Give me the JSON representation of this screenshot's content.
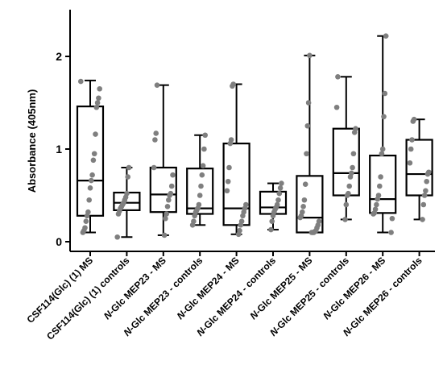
{
  "chart_data": {
    "type": "box",
    "title": "",
    "ylabel": "Absorbance (405nm)",
    "xlabel": "",
    "ylim": [
      -0.1,
      2.5
    ],
    "yticks": [
      "0",
      "1",
      "2"
    ],
    "grid": false,
    "colors": {
      "box": "#000000",
      "point": "#7f7f7f"
    },
    "categories": [
      "CSF114(Glc) (1) MS",
      "CSF114(Glc) (1) controls",
      "N-Glc MEP23 - MS",
      "N-Glc MEP23 - controls",
      "N-Glc MEP24 - MS",
      "N-Glc MEP24 - controls",
      "N-Glc MEP25 - MS",
      "N-Glc MEP25 - controls",
      "N-Glc MEP26 - MS",
      "N-Glc MEP26 - controls"
    ],
    "boxes": [
      {
        "min": 0.1,
        "q1": 0.28,
        "median": 0.66,
        "q3": 1.46,
        "max": 1.74,
        "points": [
          1.73,
          1.65,
          1.55,
          1.5,
          1.45,
          1.16,
          0.95,
          0.88,
          0.72,
          0.66,
          0.58,
          0.45,
          0.32,
          0.28,
          0.22,
          0.15,
          0.12,
          0.1
        ]
      },
      {
        "min": 0.05,
        "q1": 0.34,
        "median": 0.42,
        "q3": 0.53,
        "max": 0.8,
        "points": [
          0.8,
          0.7,
          0.52,
          0.48,
          0.45,
          0.42,
          0.4,
          0.38,
          0.36,
          0.33,
          0.3,
          0.05
        ]
      },
      {
        "min": 0.07,
        "q1": 0.32,
        "median": 0.51,
        "q3": 0.8,
        "max": 1.69,
        "points": [
          1.69,
          1.17,
          1.1,
          0.8,
          0.72,
          0.6,
          0.52,
          0.5,
          0.45,
          0.38,
          0.3,
          0.25,
          0.07
        ]
      },
      {
        "min": 0.18,
        "q1": 0.3,
        "median": 0.36,
        "q3": 0.79,
        "max": 1.15,
        "points": [
          1.15,
          1.0,
          0.82,
          0.72,
          0.6,
          0.5,
          0.4,
          0.36,
          0.34,
          0.32,
          0.28,
          0.22,
          0.18
        ]
      },
      {
        "min": 0.08,
        "q1": 0.18,
        "median": 0.36,
        "q3": 1.06,
        "max": 1.7,
        "points": [
          1.7,
          1.68,
          1.1,
          1.06,
          0.8,
          0.65,
          0.55,
          0.4,
          0.36,
          0.32,
          0.28,
          0.22,
          0.18,
          0.12,
          0.08
        ]
      },
      {
        "min": 0.13,
        "q1": 0.3,
        "median": 0.37,
        "q3": 0.54,
        "max": 0.63,
        "points": [
          0.63,
          0.58,
          0.52,
          0.45,
          0.4,
          0.37,
          0.35,
          0.32,
          0.28,
          0.22,
          0.13
        ]
      },
      {
        "min": 0.1,
        "q1": 0.1,
        "median": 0.26,
        "q3": 0.71,
        "max": 2.01,
        "points": [
          2.01,
          1.5,
          1.25,
          0.95,
          0.62,
          0.45,
          0.38,
          0.32,
          0.28,
          0.26,
          0.22,
          0.18,
          0.15,
          0.12,
          0.11,
          0.1,
          0.1,
          0.1
        ]
      },
      {
        "min": 0.24,
        "q1": 0.5,
        "median": 0.74,
        "q3": 1.22,
        "max": 1.78,
        "points": [
          1.78,
          1.45,
          1.22,
          1.18,
          0.95,
          0.8,
          0.74,
          0.7,
          0.6,
          0.52,
          0.5,
          0.4,
          0.24
        ]
      },
      {
        "min": 0.1,
        "q1": 0.31,
        "median": 0.46,
        "q3": 0.93,
        "max": 2.22,
        "points": [
          2.22,
          1.6,
          1.35,
          1.0,
          0.95,
          0.7,
          0.6,
          0.5,
          0.46,
          0.4,
          0.35,
          0.31,
          0.3,
          0.25,
          0.1
        ]
      },
      {
        "min": 0.24,
        "q1": 0.5,
        "median": 0.73,
        "q3": 1.1,
        "max": 1.32,
        "points": [
          1.32,
          1.3,
          1.1,
          1.0,
          0.85,
          0.75,
          0.73,
          0.65,
          0.55,
          0.5,
          0.4,
          0.24
        ]
      }
    ]
  }
}
